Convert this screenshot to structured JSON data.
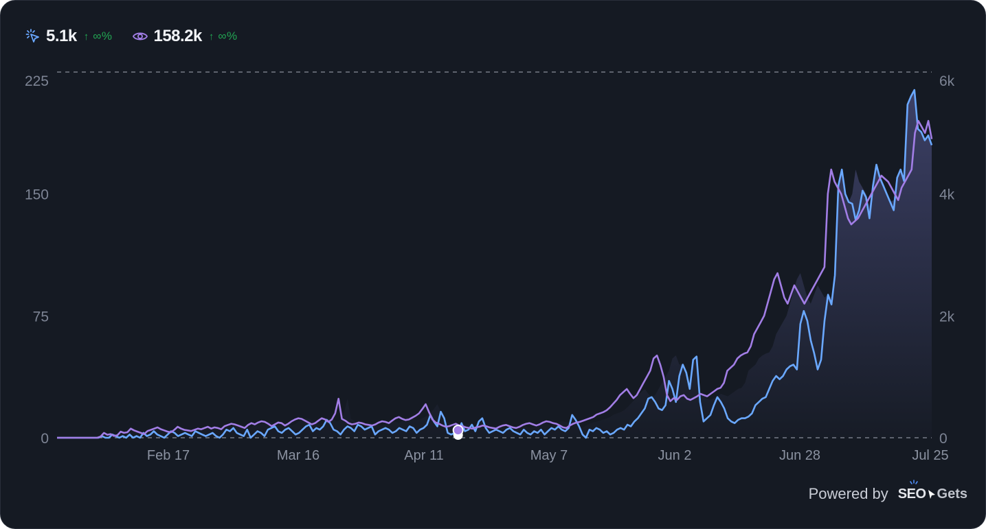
{
  "stats": {
    "clicks": {
      "value": "5.1k",
      "arrow": "↑",
      "change": "∞%",
      "icon": "cursor-click-icon",
      "color": "#6aa8ff"
    },
    "impressions": {
      "value": "158.2k",
      "arrow": "↑",
      "change": "∞%",
      "icon": "eye-icon",
      "color": "#a27ee6"
    }
  },
  "footer": {
    "powered_by": "Powered by",
    "brand_seo": "SEO",
    "brand_gets": "Gets"
  },
  "chart_data": {
    "type": "line",
    "x_tick_labels": [
      "Feb 17",
      "Mar 16",
      "Apr 11",
      "May 7",
      "Jun 2",
      "Jun 28",
      "Jul 25"
    ],
    "y_left": {
      "ticks": [
        "225",
        "150",
        "75",
        "0"
      ],
      "range": [
        0,
        225
      ]
    },
    "y_right": {
      "ticks": [
        "6k",
        "4k",
        "2k",
        "0"
      ],
      "range": [
        0,
        6000
      ]
    },
    "grid": "dashed lines at top and zero",
    "series": [
      {
        "axis": "left",
        "color": "#6aa8ff",
        "values": [
          0,
          0,
          0,
          0,
          0,
          0,
          0,
          0,
          0,
          0,
          0,
          0,
          0,
          1,
          0,
          0,
          2,
          1,
          0,
          1,
          0,
          2,
          0,
          1,
          0,
          3,
          1,
          2,
          4,
          2,
          1,
          0,
          2,
          4,
          3,
          1,
          2,
          3,
          2,
          1,
          4,
          3,
          2,
          1,
          2,
          3,
          1,
          0,
          2,
          5,
          4,
          6,
          3,
          2,
          1,
          5,
          0,
          2,
          4,
          3,
          1,
          5,
          6,
          7,
          4,
          3,
          5,
          6,
          4,
          2,
          3,
          5,
          7,
          8,
          4,
          6,
          5,
          7,
          11,
          9,
          5,
          4,
          2,
          5,
          7,
          6,
          4,
          8,
          7,
          5,
          6,
          7,
          2,
          4,
          5,
          6,
          5,
          3,
          4,
          6,
          5,
          4,
          7,
          6,
          3,
          5,
          6,
          8,
          14,
          10,
          7,
          16,
          12,
          3,
          2,
          3,
          4,
          9,
          4,
          5,
          8,
          4,
          10,
          12,
          6,
          3,
          4,
          5,
          4,
          3,
          5,
          6,
          4,
          3,
          2,
          5,
          3,
          2,
          4,
          3,
          5,
          2,
          4,
          6,
          5,
          7,
          5,
          4,
          6,
          14,
          11,
          7,
          2,
          0,
          5,
          4,
          6,
          5,
          3,
          4,
          2,
          3,
          5,
          6,
          5,
          8,
          7,
          10,
          12,
          15,
          18,
          24,
          25,
          22,
          18,
          17,
          20,
          35,
          30,
          22,
          38,
          45,
          40,
          30,
          48,
          50,
          22,
          10,
          12,
          14,
          20,
          25,
          22,
          18,
          12,
          10,
          9,
          11,
          12,
          12,
          13,
          15,
          20,
          22,
          24,
          25,
          30,
          35,
          38,
          36,
          38,
          42,
          44,
          45,
          42,
          70,
          78,
          72,
          60,
          52,
          42,
          48,
          72,
          88,
          82,
          100,
          155,
          165,
          150,
          145,
          144,
          134,
          140,
          152,
          148,
          135,
          155,
          168,
          160,
          155,
          150,
          145,
          140,
          160,
          165,
          158,
          205,
          210,
          214,
          190,
          188,
          183,
          186,
          180
        ]
      },
      {
        "axis": "right",
        "color": "#a27ee6",
        "values": [
          0,
          0,
          0,
          0,
          0,
          0,
          0,
          0,
          0,
          0,
          0,
          0,
          0,
          20,
          80,
          50,
          60,
          30,
          40,
          100,
          80,
          90,
          150,
          120,
          100,
          80,
          60,
          110,
          130,
          150,
          170,
          140,
          120,
          100,
          90,
          130,
          180,
          150,
          130,
          120,
          110,
          130,
          150,
          140,
          160,
          180,
          150,
          170,
          160,
          140,
          190,
          210,
          230,
          220,
          200,
          180,
          160,
          210,
          240,
          220,
          250,
          270,
          260,
          230,
          190,
          220,
          250,
          240,
          200,
          230,
          270,
          300,
          320,
          310,
          280,
          250,
          220,
          240,
          280,
          320,
          300,
          260,
          300,
          400,
          640,
          310,
          280,
          240,
          220,
          230,
          250,
          240,
          220,
          210,
          200,
          220,
          250,
          270,
          260,
          240,
          280,
          320,
          340,
          310,
          290,
          300,
          330,
          360,
          400,
          470,
          550,
          420,
          300,
          250,
          230,
          200,
          180,
          190,
          210,
          230,
          200,
          190,
          170,
          160,
          150,
          170,
          180,
          200,
          190,
          170,
          160,
          150,
          180,
          200,
          210,
          190,
          170,
          160,
          180,
          210,
          230,
          240,
          220,
          200,
          220,
          250,
          270,
          260,
          240,
          230,
          200,
          170,
          160,
          200,
          230,
          250,
          260,
          280,
          300,
          320,
          340,
          380,
          400,
          420,
          450,
          500,
          560,
          620,
          700,
          750,
          800,
          720,
          650,
          700,
          800,
          900,
          1000,
          1100,
          1300,
          1350,
          1200,
          1000,
          700,
          600,
          650,
          620,
          680,
          700,
          640,
          620,
          650,
          680,
          720,
          700,
          680,
          720,
          760,
          800,
          820,
          900,
          1100,
          1150,
          1200,
          1300,
          1350,
          1380,
          1400,
          1500,
          1700,
          1800,
          1900,
          2000,
          2200,
          2400,
          2600,
          2700,
          2500,
          2300,
          2200,
          2350,
          2500,
          2400,
          2300,
          2200,
          2300,
          2400,
          2500,
          2600,
          2700,
          2800,
          4000,
          4400,
          4200,
          4100,
          4000,
          3800,
          3600,
          3500,
          3550,
          3600,
          3700,
          3800,
          3900,
          4000,
          4100,
          4200,
          4300,
          4250,
          4200,
          4100,
          4000,
          3900,
          4100,
          4200,
          4300,
          4400,
          5000,
          5200,
          5100,
          5000,
          5200,
          4900
        ]
      }
    ],
    "hover_marker": {
      "index": 116,
      "colors": [
        "#ffffff",
        "#a27ee6"
      ]
    }
  }
}
